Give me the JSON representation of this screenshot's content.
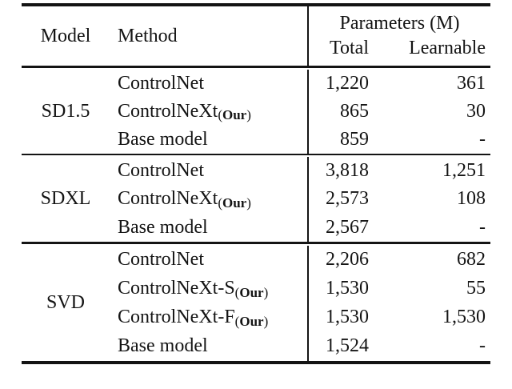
{
  "header": {
    "model": "Model",
    "method": "Method",
    "params_group": "Parameters (M)",
    "total": "Total",
    "learnable": "Learnable"
  },
  "groups": [
    {
      "model": "SD1.5",
      "rows": [
        {
          "method": "ControlNet",
          "sub_open": "",
          "sub_name": "",
          "sub_close": "",
          "total": "1,220",
          "learnable": "361"
        },
        {
          "method": "ControlNeXt",
          "sub_open": "(",
          "sub_name": "Our",
          "sub_close": ")",
          "total": "865",
          "learnable": "30"
        },
        {
          "method": "Base model",
          "sub_open": "",
          "sub_name": "",
          "sub_close": "",
          "total": "859",
          "learnable": "-"
        }
      ]
    },
    {
      "model": "SDXL",
      "rows": [
        {
          "method": "ControlNet",
          "sub_open": "",
          "sub_name": "",
          "sub_close": "",
          "total": "3,818",
          "learnable": "1,251"
        },
        {
          "method": "ControlNeXt",
          "sub_open": "(",
          "sub_name": "Our",
          "sub_close": ")",
          "total": "2,573",
          "learnable": "108"
        },
        {
          "method": "Base model",
          "sub_open": "",
          "sub_name": "",
          "sub_close": "",
          "total": "2,567",
          "learnable": "-"
        }
      ]
    },
    {
      "model": "SVD",
      "rows": [
        {
          "method": "ControlNet",
          "sub_open": "",
          "sub_name": "",
          "sub_close": "",
          "total": "2,206",
          "learnable": "682"
        },
        {
          "method": "ControlNeXt-S",
          "sub_open": "(",
          "sub_name": "Our",
          "sub_close": ")",
          "total": "1,530",
          "learnable": "55"
        },
        {
          "method": "ControlNeXt-F",
          "sub_open": "(",
          "sub_name": "Our",
          "sub_close": ")",
          "total": "1,530",
          "learnable": "1,530"
        },
        {
          "method": "Base model",
          "sub_open": "",
          "sub_name": "",
          "sub_close": "",
          "total": "1,524",
          "learnable": "-"
        }
      ]
    }
  ],
  "colors": {
    "text": "#141414",
    "rule": "#141414",
    "background": "#ffffff"
  }
}
